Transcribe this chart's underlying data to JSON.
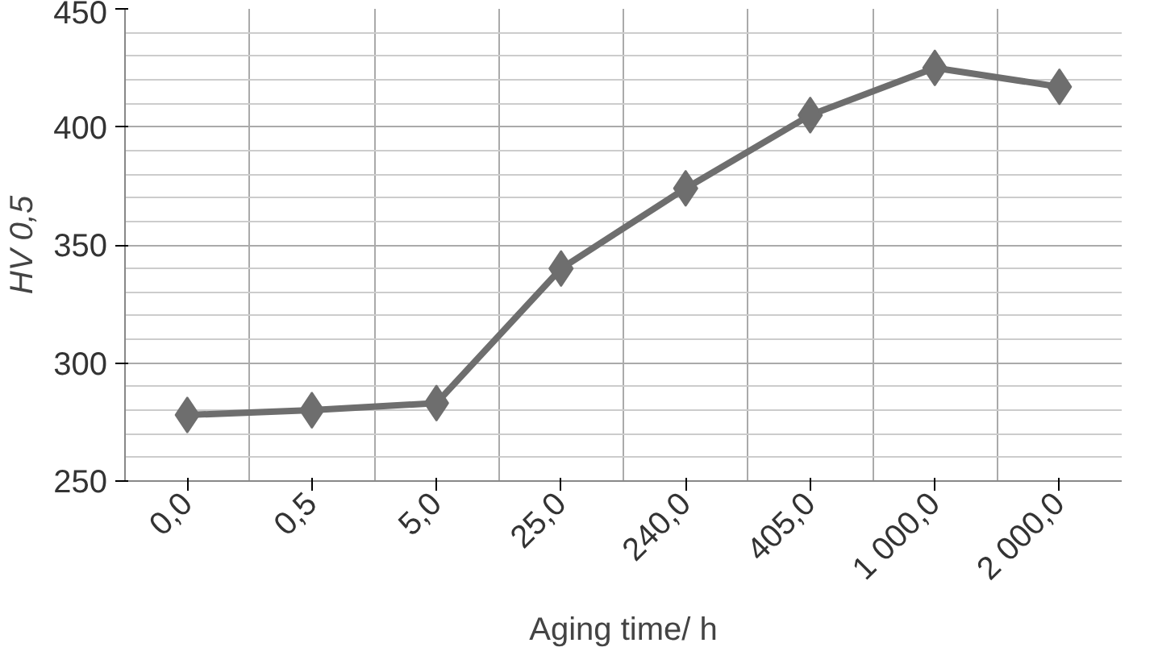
{
  "chart_data": {
    "type": "line",
    "xlabel": "Aging time/ h",
    "ylabel": "HV 0,5",
    "categories": [
      "0,0",
      "0,5",
      "5,0",
      "25,0",
      "240,0",
      "405,0",
      "1 000,0",
      "2 000,0"
    ],
    "series": [
      {
        "color": "#6e6e6e",
        "values": [
          278,
          280,
          283,
          340,
          374,
          405,
          425,
          417
        ]
      }
    ],
    "ylim": [
      250,
      450
    ],
    "yticks": [
      250,
      300,
      350,
      400,
      450
    ],
    "grid": true,
    "marker": "diamond",
    "line_style": "solid"
  }
}
